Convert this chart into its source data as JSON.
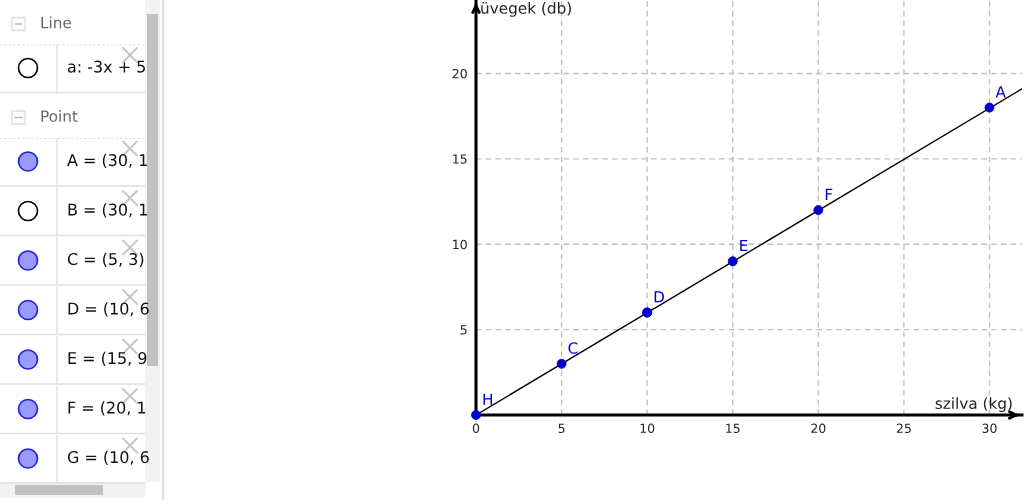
{
  "chart_data": {
    "type": "scatter",
    "xlabel": "szilva (kg)",
    "ylabel": "üvegek (db)",
    "series": [
      {
        "type": "line",
        "x": [
          0,
          31.9
        ],
        "values": [
          0,
          19.1
        ],
        "color": "#000000",
        "marker": "none"
      },
      {
        "x": [
          30,
          5,
          10,
          15,
          20,
          10,
          0
        ],
        "values": [
          18,
          3,
          6,
          9,
          12,
          6,
          0
        ],
        "color": "#0000cc"
      }
    ],
    "xlim": [
      0,
      31.9
    ],
    "ylim": [
      0,
      24.3
    ],
    "xticks": [
      0,
      5,
      10,
      15,
      20,
      25,
      30
    ],
    "yticks": [
      5,
      10,
      15,
      20
    ],
    "grid": true,
    "marker": "circle",
    "annotations": [
      {
        "text": "A",
        "x": 30,
        "y": 18
      },
      {
        "text": "C",
        "x": 5,
        "y": 3
      },
      {
        "text": "D",
        "x": 10,
        "y": 6
      },
      {
        "text": "E",
        "x": 15,
        "y": 9
      },
      {
        "text": "F",
        "x": 20,
        "y": 12
      },
      {
        "text": "H",
        "x": 0,
        "y": 0
      },
      "Line",
      "a: -3x + 5",
      "Point",
      "A = (30, 1",
      "B = (30, 1",
      "C = (5, 3)",
      "D = (10, 6",
      "E = (15, 9",
      "F = (20, 1",
      "G = (10, 6"
    ]
  }
}
